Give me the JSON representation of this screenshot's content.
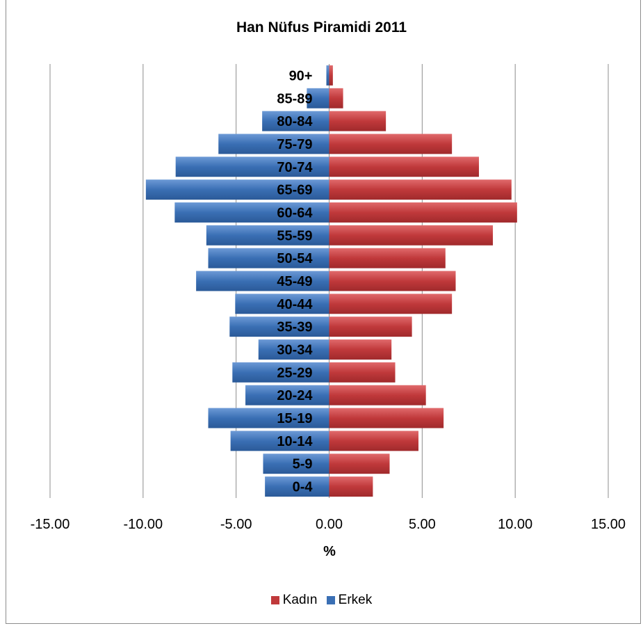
{
  "chart_data": {
    "type": "bar",
    "orientation": "horizontal",
    "title": "Han Nüfus Piramidi 2011",
    "xlabel": "%",
    "ylabel": "",
    "xlim": [
      -15,
      15
    ],
    "xticks": [
      "-15.00",
      "-10.00",
      "-5.00",
      "0.00",
      "5.00",
      "10.00",
      "15.00"
    ],
    "xtick_values": [
      -15,
      -10,
      -5,
      0,
      5,
      10,
      15
    ],
    "grid": true,
    "legend_position": "bottom",
    "categories": [
      "0-4",
      "5-9",
      "10-14",
      "15-19",
      "20-24",
      "25-29",
      "30-34",
      "35-39",
      "40-44",
      "45-49",
      "50-54",
      "55-59",
      "60-64",
      "65-69",
      "70-74",
      "75-79",
      "80-84",
      "85-89",
      "90+"
    ],
    "series": [
      {
        "name": "Kadın",
        "color": "#c0393b",
        "values": [
          2.35,
          3.25,
          4.8,
          6.15,
          5.2,
          3.55,
          3.35,
          4.45,
          6.6,
          6.8,
          6.25,
          8.8,
          10.1,
          9.8,
          8.05,
          6.6,
          3.05,
          0.75,
          0.2
        ]
      },
      {
        "name": "Erkek",
        "color": "#3a6fb4",
        "values": [
          -3.45,
          -3.55,
          -5.3,
          -6.5,
          -4.5,
          -5.2,
          -3.8,
          -5.35,
          -5.05,
          -7.15,
          -6.5,
          -6.6,
          -8.3,
          -9.85,
          -8.25,
          -5.95,
          -3.6,
          -1.2,
          -0.15
        ]
      }
    ]
  }
}
